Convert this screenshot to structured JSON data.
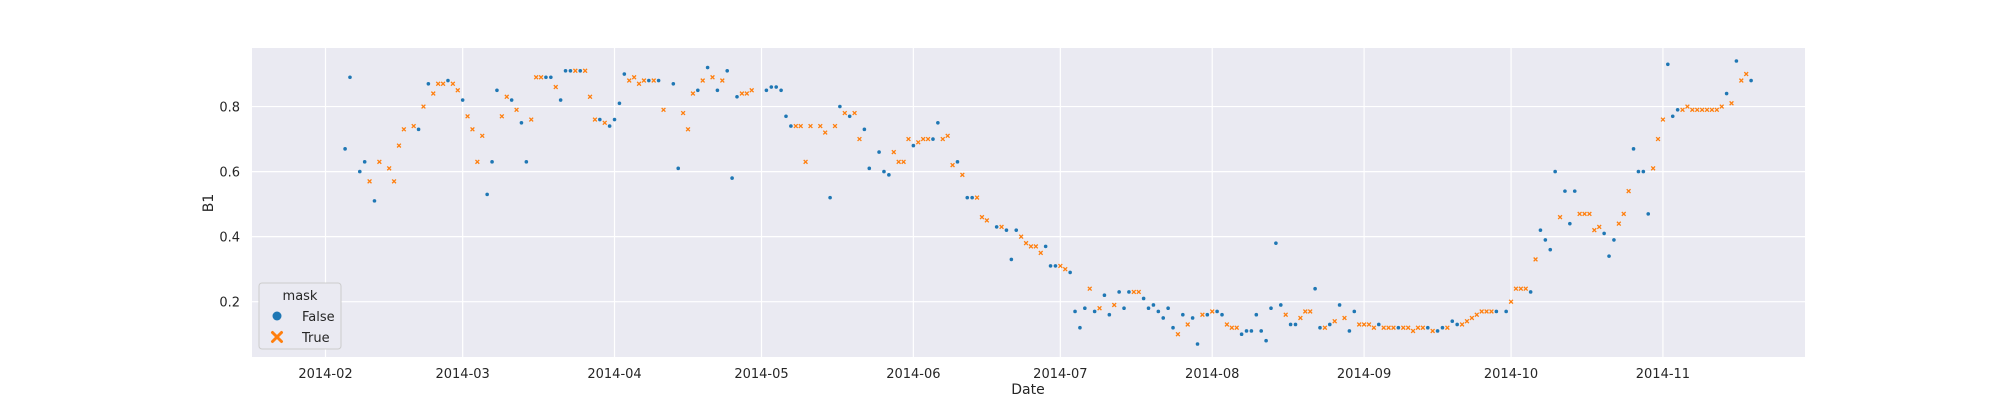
{
  "chart_data": {
    "type": "scatter",
    "xlabel": "Date",
    "ylabel": "B1",
    "xlim": [
      "2014-01-17",
      "2014-11-30"
    ],
    "ylim": [
      0.03,
      0.98
    ],
    "x_ticks": [
      "2014-02",
      "2014-03",
      "2014-04",
      "2014-05",
      "2014-06",
      "2014-07",
      "2014-08",
      "2014-09",
      "2014-10",
      "2014-11"
    ],
    "y_ticks": [
      0.2,
      0.4,
      0.6,
      0.8
    ],
    "grid": true,
    "legend": {
      "title": "mask",
      "position": "lower-left"
    },
    "series": [
      {
        "name": "False",
        "marker": "circle",
        "color": "#1f77b4",
        "points": [
          [
            "2014-02-05",
            0.67
          ],
          [
            "2014-02-06",
            0.89
          ],
          [
            "2014-02-08",
            0.6
          ],
          [
            "2014-02-09",
            0.63
          ],
          [
            "2014-02-11",
            0.51
          ],
          [
            "2014-02-20",
            0.73
          ],
          [
            "2014-02-22",
            0.87
          ],
          [
            "2014-02-26",
            0.88
          ],
          [
            "2014-03-01",
            0.82
          ],
          [
            "2014-03-06",
            0.53
          ],
          [
            "2014-03-07",
            0.63
          ],
          [
            "2014-03-08",
            0.85
          ],
          [
            "2014-03-11",
            0.82
          ],
          [
            "2014-03-13",
            0.75
          ],
          [
            "2014-03-14",
            0.63
          ],
          [
            "2014-03-18",
            0.89
          ],
          [
            "2014-03-19",
            0.89
          ],
          [
            "2014-03-21",
            0.82
          ],
          [
            "2014-03-22",
            0.91
          ],
          [
            "2014-03-23",
            0.91
          ],
          [
            "2014-03-25",
            0.91
          ],
          [
            "2014-03-29",
            0.76
          ],
          [
            "2014-03-31",
            0.74
          ],
          [
            "2014-04-01",
            0.76
          ],
          [
            "2014-04-02",
            0.81
          ],
          [
            "2014-04-03",
            0.9
          ],
          [
            "2014-04-08",
            0.88
          ],
          [
            "2014-04-10",
            0.88
          ],
          [
            "2014-04-13",
            0.87
          ],
          [
            "2014-04-14",
            0.61
          ],
          [
            "2014-04-18",
            0.85
          ],
          [
            "2014-04-20",
            0.92
          ],
          [
            "2014-04-22",
            0.85
          ],
          [
            "2014-04-24",
            0.91
          ],
          [
            "2014-04-25",
            0.58
          ],
          [
            "2014-04-26",
            0.83
          ],
          [
            "2014-05-02",
            0.85
          ],
          [
            "2014-05-03",
            0.86
          ],
          [
            "2014-05-04",
            0.86
          ],
          [
            "2014-05-05",
            0.85
          ],
          [
            "2014-05-06",
            0.77
          ],
          [
            "2014-05-07",
            0.74
          ],
          [
            "2014-05-15",
            0.52
          ],
          [
            "2014-05-17",
            0.8
          ],
          [
            "2014-05-19",
            0.77
          ],
          [
            "2014-05-22",
            0.73
          ],
          [
            "2014-05-23",
            0.61
          ],
          [
            "2014-05-25",
            0.66
          ],
          [
            "2014-05-26",
            0.6
          ],
          [
            "2014-05-27",
            0.59
          ],
          [
            "2014-06-01",
            0.68
          ],
          [
            "2014-06-05",
            0.7
          ],
          [
            "2014-06-06",
            0.75
          ],
          [
            "2014-06-10",
            0.63
          ],
          [
            "2014-06-12",
            0.52
          ],
          [
            "2014-06-13",
            0.52
          ],
          [
            "2014-06-18",
            0.43
          ],
          [
            "2014-06-20",
            0.42
          ],
          [
            "2014-06-21",
            0.33
          ],
          [
            "2014-06-22",
            0.42
          ],
          [
            "2014-06-28",
            0.37
          ],
          [
            "2014-06-29",
            0.31
          ],
          [
            "2014-06-30",
            0.31
          ],
          [
            "2014-07-03",
            0.29
          ],
          [
            "2014-07-04",
            0.17
          ],
          [
            "2014-07-05",
            0.12
          ],
          [
            "2014-07-06",
            0.18
          ],
          [
            "2014-07-08",
            0.17
          ],
          [
            "2014-07-10",
            0.22
          ],
          [
            "2014-07-11",
            0.16
          ],
          [
            "2014-07-13",
            0.23
          ],
          [
            "2014-07-14",
            0.18
          ],
          [
            "2014-07-15",
            0.23
          ],
          [
            "2014-07-18",
            0.21
          ],
          [
            "2014-07-19",
            0.18
          ],
          [
            "2014-07-20",
            0.19
          ],
          [
            "2014-07-21",
            0.17
          ],
          [
            "2014-07-22",
            0.15
          ],
          [
            "2014-07-23",
            0.18
          ],
          [
            "2014-07-24",
            0.12
          ],
          [
            "2014-07-26",
            0.16
          ],
          [
            "2014-07-28",
            0.15
          ],
          [
            "2014-07-29",
            0.07
          ],
          [
            "2014-07-31",
            0.16
          ],
          [
            "2014-08-02",
            0.17
          ],
          [
            "2014-08-03",
            0.16
          ],
          [
            "2014-08-07",
            0.1
          ],
          [
            "2014-08-08",
            0.11
          ],
          [
            "2014-08-09",
            0.11
          ],
          [
            "2014-08-10",
            0.16
          ],
          [
            "2014-08-11",
            0.11
          ],
          [
            "2014-08-12",
            0.08
          ],
          [
            "2014-08-13",
            0.18
          ],
          [
            "2014-08-14",
            0.38
          ],
          [
            "2014-08-15",
            0.19
          ],
          [
            "2014-08-17",
            0.13
          ],
          [
            "2014-08-18",
            0.13
          ],
          [
            "2014-08-22",
            0.24
          ],
          [
            "2014-08-23",
            0.12
          ],
          [
            "2014-08-25",
            0.13
          ],
          [
            "2014-08-27",
            0.19
          ],
          [
            "2014-08-29",
            0.11
          ],
          [
            "2014-08-30",
            0.17
          ],
          [
            "2014-09-04",
            0.13
          ],
          [
            "2014-09-08",
            0.12
          ],
          [
            "2014-09-14",
            0.12
          ],
          [
            "2014-09-16",
            0.11
          ],
          [
            "2014-09-17",
            0.12
          ],
          [
            "2014-09-19",
            0.14
          ],
          [
            "2014-09-20",
            0.13
          ],
          [
            "2014-09-28",
            0.17
          ],
          [
            "2014-09-30",
            0.17
          ],
          [
            "2014-10-05",
            0.23
          ],
          [
            "2014-10-07",
            0.42
          ],
          [
            "2014-10-08",
            0.39
          ],
          [
            "2014-10-09",
            0.36
          ],
          [
            "2014-10-10",
            0.6
          ],
          [
            "2014-10-12",
            0.54
          ],
          [
            "2014-10-13",
            0.44
          ],
          [
            "2014-10-14",
            0.54
          ],
          [
            "2014-10-20",
            0.41
          ],
          [
            "2014-10-21",
            0.34
          ],
          [
            "2014-10-22",
            0.39
          ],
          [
            "2014-10-26",
            0.67
          ],
          [
            "2014-10-27",
            0.6
          ],
          [
            "2014-10-28",
            0.6
          ],
          [
            "2014-10-29",
            0.47
          ],
          [
            "2014-11-02",
            0.93
          ],
          [
            "2014-11-03",
            0.77
          ],
          [
            "2014-11-04",
            0.79
          ],
          [
            "2014-11-14",
            0.84
          ],
          [
            "2014-11-16",
            0.94
          ],
          [
            "2014-11-19",
            0.88
          ]
        ]
      },
      {
        "name": "True",
        "marker": "x",
        "color": "#ff7f0e",
        "points": [
          [
            "2014-02-10",
            0.57
          ],
          [
            "2014-02-12",
            0.63
          ],
          [
            "2014-02-14",
            0.61
          ],
          [
            "2014-02-15",
            0.57
          ],
          [
            "2014-02-16",
            0.68
          ],
          [
            "2014-02-17",
            0.73
          ],
          [
            "2014-02-19",
            0.74
          ],
          [
            "2014-02-21",
            0.8
          ],
          [
            "2014-02-23",
            0.84
          ],
          [
            "2014-02-24",
            0.87
          ],
          [
            "2014-02-25",
            0.87
          ],
          [
            "2014-02-27",
            0.87
          ],
          [
            "2014-02-28",
            0.85
          ],
          [
            "2014-03-02",
            0.77
          ],
          [
            "2014-03-03",
            0.73
          ],
          [
            "2014-03-04",
            0.63
          ],
          [
            "2014-03-05",
            0.71
          ],
          [
            "2014-03-09",
            0.77
          ],
          [
            "2014-03-10",
            0.83
          ],
          [
            "2014-03-12",
            0.79
          ],
          [
            "2014-03-15",
            0.76
          ],
          [
            "2014-03-16",
            0.89
          ],
          [
            "2014-03-17",
            0.89
          ],
          [
            "2014-03-20",
            0.86
          ],
          [
            "2014-03-24",
            0.91
          ],
          [
            "2014-03-26",
            0.91
          ],
          [
            "2014-03-27",
            0.83
          ],
          [
            "2014-03-28",
            0.76
          ],
          [
            "2014-03-30",
            0.75
          ],
          [
            "2014-04-04",
            0.88
          ],
          [
            "2014-04-05",
            0.89
          ],
          [
            "2014-04-06",
            0.87
          ],
          [
            "2014-04-07",
            0.88
          ],
          [
            "2014-04-09",
            0.88
          ],
          [
            "2014-04-11",
            0.79
          ],
          [
            "2014-04-15",
            0.78
          ],
          [
            "2014-04-16",
            0.73
          ],
          [
            "2014-04-17",
            0.84
          ],
          [
            "2014-04-19",
            0.88
          ],
          [
            "2014-04-21",
            0.89
          ],
          [
            "2014-04-23",
            0.88
          ],
          [
            "2014-04-27",
            0.84
          ],
          [
            "2014-04-28",
            0.84
          ],
          [
            "2014-04-29",
            0.85
          ],
          [
            "2014-05-08",
            0.74
          ],
          [
            "2014-05-09",
            0.74
          ],
          [
            "2014-05-10",
            0.63
          ],
          [
            "2014-05-11",
            0.74
          ],
          [
            "2014-05-13",
            0.74
          ],
          [
            "2014-05-14",
            0.72
          ],
          [
            "2014-05-16",
            0.74
          ],
          [
            "2014-05-18",
            0.78
          ],
          [
            "2014-05-20",
            0.78
          ],
          [
            "2014-05-21",
            0.7
          ],
          [
            "2014-05-28",
            0.66
          ],
          [
            "2014-05-29",
            0.63
          ],
          [
            "2014-05-30",
            0.63
          ],
          [
            "2014-05-31",
            0.7
          ],
          [
            "2014-06-02",
            0.69
          ],
          [
            "2014-06-03",
            0.7
          ],
          [
            "2014-06-04",
            0.7
          ],
          [
            "2014-06-07",
            0.7
          ],
          [
            "2014-06-08",
            0.71
          ],
          [
            "2014-06-09",
            0.62
          ],
          [
            "2014-06-11",
            0.59
          ],
          [
            "2014-06-14",
            0.52
          ],
          [
            "2014-06-15",
            0.46
          ],
          [
            "2014-06-16",
            0.45
          ],
          [
            "2014-06-19",
            0.43
          ],
          [
            "2014-06-23",
            0.4
          ],
          [
            "2014-06-24",
            0.38
          ],
          [
            "2014-06-25",
            0.37
          ],
          [
            "2014-06-26",
            0.37
          ],
          [
            "2014-06-27",
            0.35
          ],
          [
            "2014-07-01",
            0.31
          ],
          [
            "2014-07-02",
            0.3
          ],
          [
            "2014-07-07",
            0.24
          ],
          [
            "2014-07-09",
            0.18
          ],
          [
            "2014-07-12",
            0.19
          ],
          [
            "2014-07-16",
            0.23
          ],
          [
            "2014-07-17",
            0.23
          ],
          [
            "2014-07-25",
            0.1
          ],
          [
            "2014-07-27",
            0.13
          ],
          [
            "2014-07-30",
            0.16
          ],
          [
            "2014-08-01",
            0.17
          ],
          [
            "2014-08-04",
            0.13
          ],
          [
            "2014-08-05",
            0.12
          ],
          [
            "2014-08-06",
            0.12
          ],
          [
            "2014-08-16",
            0.16
          ],
          [
            "2014-08-19",
            0.15
          ],
          [
            "2014-08-20",
            0.17
          ],
          [
            "2014-08-21",
            0.17
          ],
          [
            "2014-08-24",
            0.12
          ],
          [
            "2014-08-26",
            0.14
          ],
          [
            "2014-08-28",
            0.15
          ],
          [
            "2014-08-31",
            0.13
          ],
          [
            "2014-09-01",
            0.13
          ],
          [
            "2014-09-02",
            0.13
          ],
          [
            "2014-09-03",
            0.12
          ],
          [
            "2014-09-05",
            0.12
          ],
          [
            "2014-09-06",
            0.12
          ],
          [
            "2014-09-07",
            0.12
          ],
          [
            "2014-09-09",
            0.12
          ],
          [
            "2014-09-10",
            0.12
          ],
          [
            "2014-09-11",
            0.11
          ],
          [
            "2014-09-12",
            0.12
          ],
          [
            "2014-09-13",
            0.12
          ],
          [
            "2014-09-15",
            0.11
          ],
          [
            "2014-09-18",
            0.12
          ],
          [
            "2014-09-21",
            0.13
          ],
          [
            "2014-09-22",
            0.14
          ],
          [
            "2014-09-23",
            0.15
          ],
          [
            "2014-09-24",
            0.16
          ],
          [
            "2014-09-25",
            0.17
          ],
          [
            "2014-09-26",
            0.17
          ],
          [
            "2014-09-27",
            0.17
          ],
          [
            "2014-10-01",
            0.2
          ],
          [
            "2014-10-02",
            0.24
          ],
          [
            "2014-10-03",
            0.24
          ],
          [
            "2014-10-04",
            0.24
          ],
          [
            "2014-10-06",
            0.33
          ],
          [
            "2014-10-11",
            0.46
          ],
          [
            "2014-10-15",
            0.47
          ],
          [
            "2014-10-16",
            0.47
          ],
          [
            "2014-10-17",
            0.47
          ],
          [
            "2014-10-18",
            0.42
          ],
          [
            "2014-10-19",
            0.43
          ],
          [
            "2014-10-23",
            0.44
          ],
          [
            "2014-10-24",
            0.47
          ],
          [
            "2014-10-25",
            0.54
          ],
          [
            "2014-10-30",
            0.61
          ],
          [
            "2014-10-31",
            0.7
          ],
          [
            "2014-11-01",
            0.76
          ],
          [
            "2014-11-05",
            0.79
          ],
          [
            "2014-11-06",
            0.8
          ],
          [
            "2014-11-07",
            0.79
          ],
          [
            "2014-11-08",
            0.79
          ],
          [
            "2014-11-09",
            0.79
          ],
          [
            "2014-11-10",
            0.79
          ],
          [
            "2014-11-11",
            0.79
          ],
          [
            "2014-11-12",
            0.79
          ],
          [
            "2014-11-13",
            0.8
          ],
          [
            "2014-11-15",
            0.81
          ],
          [
            "2014-11-17",
            0.88
          ],
          [
            "2014-11-18",
            0.9
          ]
        ]
      }
    ]
  }
}
